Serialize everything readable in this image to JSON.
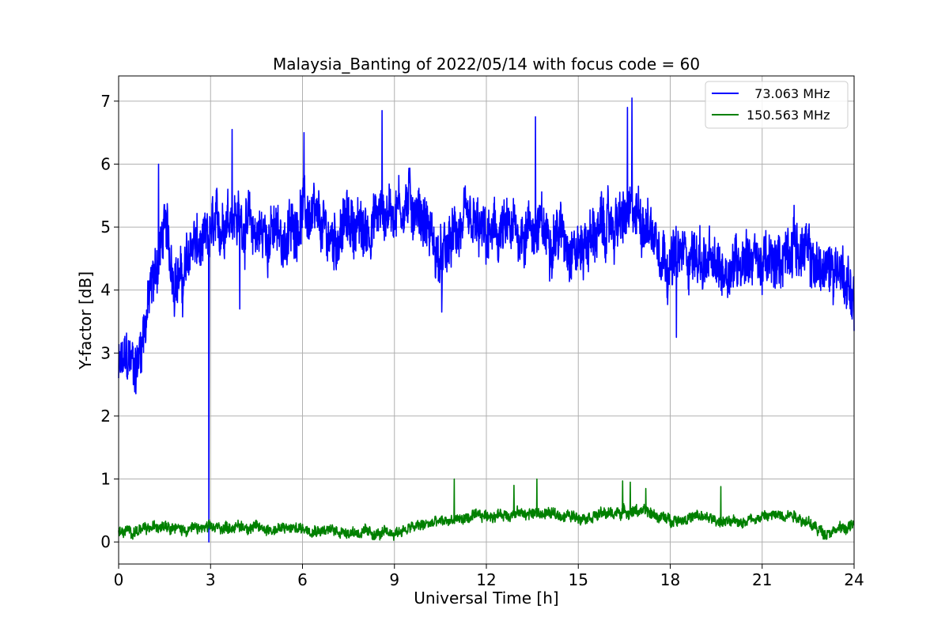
{
  "chart_data": {
    "type": "line",
    "title": "Malaysia_Banting of 2022/05/14 with focus code = 60",
    "xlabel": "Universal Time [h]",
    "ylabel": "Y-factor [dB]",
    "xlim": [
      0,
      24
    ],
    "ylim": [
      -0.35,
      7.4
    ],
    "xticks": [
      0,
      3,
      6,
      9,
      12,
      15,
      18,
      21,
      24
    ],
    "yticks": [
      0,
      1,
      2,
      3,
      4,
      5,
      6,
      7
    ],
    "grid": true,
    "legend_position": "top-right",
    "series": [
      {
        "name": "  73.063 MHz",
        "color": "#0000ff",
        "noise": 0.45,
        "spikes": [
          [
            2.95,
            0.0
          ],
          [
            1.3,
            6.0
          ],
          [
            3.7,
            6.55
          ],
          [
            6.05,
            6.5
          ],
          [
            8.6,
            6.85
          ],
          [
            13.6,
            6.75
          ],
          [
            16.6,
            6.9
          ],
          [
            16.75,
            7.05
          ],
          [
            3.95,
            3.7
          ],
          [
            10.55,
            3.65
          ],
          [
            18.2,
            3.25
          ],
          [
            24.0,
            3.35
          ]
        ],
        "x": [
          0,
          0.3,
          0.6,
          0.9,
          1.2,
          1.5,
          1.8,
          2.1,
          2.4,
          2.7,
          2.9,
          3.0,
          3.3,
          3.6,
          4.0,
          4.5,
          5.0,
          5.5,
          6.0,
          6.5,
          7.0,
          7.5,
          8.0,
          8.5,
          9.0,
          9.5,
          10.0,
          10.5,
          11.0,
          11.5,
          12.0,
          12.5,
          13.0,
          13.5,
          14.0,
          14.5,
          15.0,
          15.5,
          16.0,
          16.5,
          17.0,
          17.5,
          18.0,
          18.5,
          19.0,
          19.5,
          20.0,
          20.5,
          21.0,
          21.5,
          22.0,
          22.5,
          23.0,
          23.5,
          24.0
        ],
        "y": [
          2.7,
          2.9,
          2.8,
          3.6,
          4.3,
          5.0,
          4.3,
          4.1,
          4.8,
          4.6,
          4.7,
          4.9,
          5.0,
          5.3,
          5.1,
          4.9,
          4.9,
          4.8,
          5.3,
          5.0,
          4.8,
          5.1,
          4.9,
          5.2,
          5.3,
          5.4,
          5.1,
          4.4,
          4.9,
          5.0,
          4.8,
          4.9,
          4.9,
          5.0,
          4.9,
          4.9,
          4.6,
          4.9,
          5.0,
          5.1,
          5.2,
          4.9,
          4.4,
          4.6,
          4.5,
          4.3,
          4.4,
          4.6,
          4.4,
          4.4,
          4.8,
          4.5,
          4.3,
          4.4,
          3.9
        ]
      },
      {
        "name": "150.563 MHz",
        "color": "#008000",
        "noise": 0.09,
        "spikes": [
          [
            10.95,
            1.0
          ],
          [
            13.65,
            1.0
          ],
          [
            12.9,
            0.9
          ],
          [
            16.45,
            0.97
          ],
          [
            16.7,
            0.95
          ],
          [
            17.2,
            0.85
          ],
          [
            19.65,
            0.88
          ]
        ],
        "x": [
          0,
          1.0,
          1.5,
          2.0,
          3.0,
          4.0,
          5.0,
          6.0,
          7.0,
          8.0,
          8.5,
          9.0,
          10.0,
          11.0,
          12.0,
          13.0,
          14.0,
          15.0,
          16.0,
          17.0,
          18.0,
          19.0,
          20.0,
          21.0,
          22.0,
          22.5,
          23.0,
          24.0
        ],
        "y": [
          0.15,
          0.2,
          0.3,
          0.2,
          0.22,
          0.25,
          0.2,
          0.22,
          0.18,
          0.15,
          0.12,
          0.15,
          0.28,
          0.35,
          0.42,
          0.45,
          0.45,
          0.4,
          0.45,
          0.5,
          0.35,
          0.4,
          0.3,
          0.4,
          0.45,
          0.3,
          0.15,
          0.25
        ]
      }
    ]
  }
}
